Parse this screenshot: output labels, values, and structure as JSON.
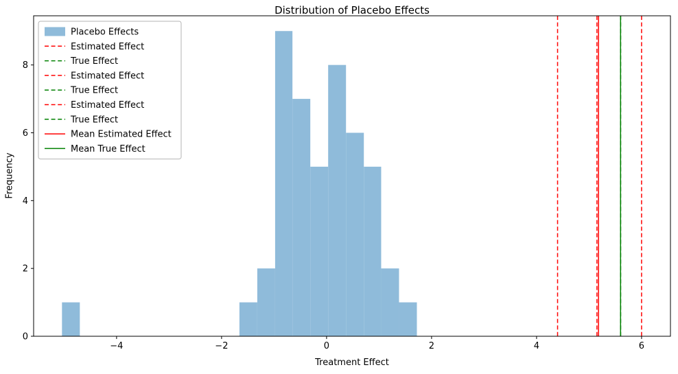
{
  "chart_data": {
    "type": "bar",
    "subtype": "histogram-with-vlines",
    "title": "Distribution of Placebo Effects",
    "xlabel": "Treatment Effect",
    "ylabel": "Frequency",
    "xlim": [
      -5.58,
      6.55
    ],
    "ylim": [
      0,
      9.45
    ],
    "xticks": [
      -4,
      -2,
      0,
      2,
      4,
      6
    ],
    "yticks": [
      0,
      2,
      4,
      6,
      8
    ],
    "grid": false,
    "legend_position": "upper-left",
    "bar_color": "#8fbbda",
    "axis_color": "#000000",
    "legend_border_color": "#b3b3b3",
    "bars": [
      {
        "x0": -5.04,
        "x1": -4.7,
        "h": 1
      },
      {
        "x0": -1.66,
        "x1": -1.32,
        "h": 1
      },
      {
        "x0": -1.32,
        "x1": -0.98,
        "h": 2
      },
      {
        "x0": -0.98,
        "x1": -0.65,
        "h": 9
      },
      {
        "x0": -0.65,
        "x1": -0.31,
        "h": 7
      },
      {
        "x0": -0.31,
        "x1": 0.03,
        "h": 5
      },
      {
        "x0": 0.03,
        "x1": 0.37,
        "h": 8
      },
      {
        "x0": 0.37,
        "x1": 0.71,
        "h": 6
      },
      {
        "x0": 0.71,
        "x1": 1.04,
        "h": 5
      },
      {
        "x0": 1.04,
        "x1": 1.38,
        "h": 2
      },
      {
        "x0": 1.38,
        "x1": 1.72,
        "h": 1
      }
    ],
    "vlines": [
      {
        "x": 4.4,
        "color": "#ff0000",
        "dash": true,
        "label": "Estimated Effect"
      },
      {
        "x": 5.6,
        "color": "#008000",
        "dash": true,
        "label": "True Effect"
      },
      {
        "x": 5.15,
        "color": "#ff0000",
        "dash": true,
        "label": "Estimated Effect"
      },
      {
        "x": 5.6,
        "color": "#008000",
        "dash": true,
        "label": "True Effect"
      },
      {
        "x": 6.0,
        "color": "#ff0000",
        "dash": true,
        "label": "Estimated Effect"
      },
      {
        "x": 5.6,
        "color": "#008000",
        "dash": true,
        "label": "True Effect"
      },
      {
        "x": 5.18,
        "color": "#ff0000",
        "dash": false,
        "label": "Mean Estimated Effect"
      },
      {
        "x": 5.6,
        "color": "#008000",
        "dash": false,
        "label": "Mean True Effect"
      }
    ],
    "legend": [
      {
        "label": "Placebo Effects",
        "type": "patch",
        "color": "#8fbbda",
        "dash": false
      },
      {
        "label": "Estimated Effect",
        "type": "line",
        "color": "#ff0000",
        "dash": true
      },
      {
        "label": "True Effect",
        "type": "line",
        "color": "#008000",
        "dash": true
      },
      {
        "label": "Estimated Effect",
        "type": "line",
        "color": "#ff0000",
        "dash": true
      },
      {
        "label": "True Effect",
        "type": "line",
        "color": "#008000",
        "dash": true
      },
      {
        "label": "Estimated Effect",
        "type": "line",
        "color": "#ff0000",
        "dash": true
      },
      {
        "label": "True Effect",
        "type": "line",
        "color": "#008000",
        "dash": true
      },
      {
        "label": "Mean Estimated Effect",
        "type": "line",
        "color": "#ff0000",
        "dash": false
      },
      {
        "label": "Mean True Effect",
        "type": "line",
        "color": "#008000",
        "dash": false
      }
    ]
  }
}
